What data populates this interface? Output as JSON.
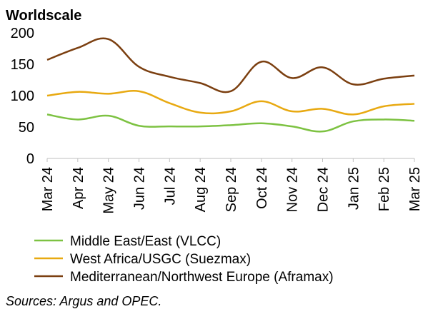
{
  "chart_data": {
    "type": "line",
    "ylabel": "Worldscale",
    "ylim": [
      0,
      200
    ],
    "yticks": [
      0,
      50,
      100,
      150,
      200
    ],
    "categories": [
      "Mar 24",
      "Apr 24",
      "May 24",
      "Jun 24",
      "Jul 24",
      "Aug 24",
      "Sep 24",
      "Oct 24",
      "Nov 24",
      "Dec 24",
      "Jan 25",
      "Feb 25",
      "Mar 25"
    ],
    "series": [
      {
        "name": "Middle East/East (VLCC)",
        "color": "#7DC242",
        "values": [
          70,
          62,
          68,
          52,
          51,
          51,
          53,
          56,
          51,
          43,
          59,
          62,
          60
        ]
      },
      {
        "name": "West Africa/USGC (Suezmax)",
        "color": "#E8A911",
        "values": [
          100,
          106,
          103,
          107,
          88,
          73,
          75,
          91,
          75,
          79,
          70,
          83,
          87
        ]
      },
      {
        "name": "Mediterranean/Northwest Europe (Aframax)",
        "color": "#7B3F10",
        "values": [
          157,
          176,
          190,
          146,
          130,
          120,
          107,
          154,
          128,
          145,
          118,
          127,
          132
        ]
      }
    ],
    "grid": false,
    "legend_position": "bottom-left",
    "source": "Sources: Argus and OPEC."
  }
}
